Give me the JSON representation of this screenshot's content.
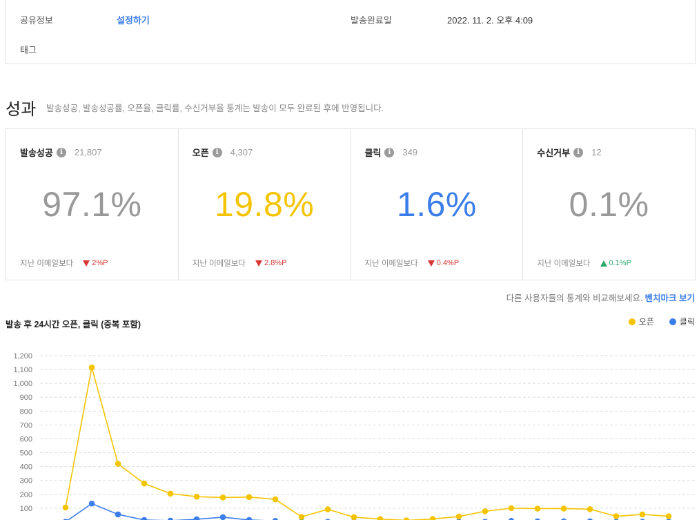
{
  "info": {
    "share_label": "공유정보",
    "share_link": "설정하기",
    "sent_label": "발송완료일",
    "sent_value": "2022. 11. 2. 오후 4:09",
    "tag_label": "태그"
  },
  "performance": {
    "title": "성과",
    "desc": "발송성공, 발송성공률, 오픈율, 클릭률, 수신거부율 통계는 발송이 모두 완료된 후에 반영됩니다."
  },
  "stats": [
    {
      "name": "발송성공",
      "count": "21,807",
      "value": "97.1%",
      "color": "#999999",
      "foot": "지난 이메일보다",
      "delta": "2%P",
      "direction": "down"
    },
    {
      "name": "오픈",
      "count": "4,307",
      "value": "19.8%",
      "color": "#f5c400",
      "foot": "지난 이메일보다",
      "delta": "2.8%P",
      "direction": "down"
    },
    {
      "name": "클릭",
      "count": "349",
      "value": "1.6%",
      "color": "#3b7de9",
      "foot": "지난 이메일보다",
      "delta": "0.4%P",
      "direction": "down"
    },
    {
      "name": "수신거부",
      "count": "12",
      "value": "0.1%",
      "color": "#999999",
      "foot": "지난 이메일보다",
      "delta": "0.1%P",
      "direction": "up"
    }
  ],
  "benchmark": {
    "text": "다른 사용자들의 통계와 비교해보세요.",
    "link": "벤치마크 보기"
  },
  "chart_data": {
    "type": "line",
    "title": "발송 후 24시간 오픈, 클릭 (중복 포함)",
    "ylim": [
      0,
      1200
    ],
    "yticks": [
      "100",
      "200",
      "300",
      "400",
      "500",
      "600",
      "700",
      "800",
      "900",
      "1,000",
      "1,100",
      "1,200"
    ],
    "grid": true,
    "legend": "top-right",
    "series": [
      {
        "name": "오픈",
        "color": "#f5c400",
        "values": [
          105,
          1115,
          420,
          278,
          205,
          183,
          177,
          180,
          164,
          37,
          92,
          35,
          22,
          12,
          22,
          40,
          78,
          100,
          97,
          97,
          93,
          42,
          55,
          42
        ]
      },
      {
        "name": "클릭",
        "color": "#3b7de9",
        "values": [
          2,
          133,
          55,
          15,
          10,
          20,
          35,
          15,
          8,
          2,
          2,
          2,
          2,
          2,
          2,
          2,
          2,
          8,
          5,
          5,
          5,
          2,
          2,
          2
        ]
      }
    ]
  }
}
